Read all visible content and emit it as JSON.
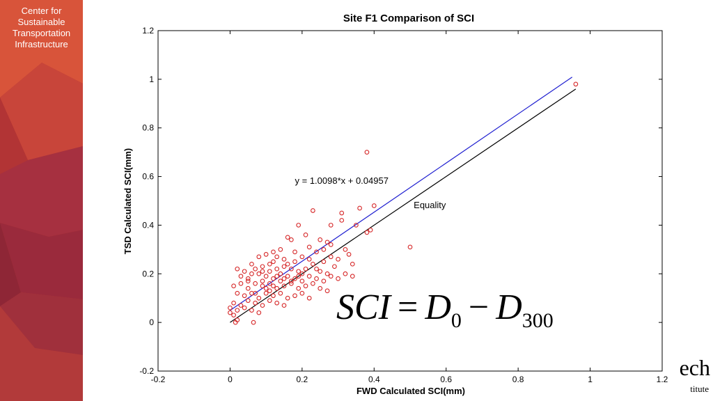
{
  "brand": {
    "lines": [
      "Center for",
      "Sustainable",
      "Transportation",
      "Infrastructure"
    ]
  },
  "logo_fragment": {
    "big": "ech",
    "small": "titute"
  },
  "formula": {
    "lhs": "SCI",
    "eq": "=",
    "d": "D",
    "sub0": "0",
    "minus": "−",
    "sub300": "300"
  },
  "colors": {
    "points": "#d62728",
    "fit_line": "#1f1fd0",
    "equality_line": "#000000",
    "sidebar_base": "#b73a2e"
  },
  "chart_data": {
    "type": "scatter",
    "title": "Site F1 Comparison of SCI",
    "xlabel": "FWD Calculated SCI(mm)",
    "ylabel": "TSD Calculated SCI(mm)",
    "xlim": [
      -0.2,
      1.2
    ],
    "ylim": [
      -0.2,
      1.2
    ],
    "xticks": [
      -0.2,
      0,
      0.2,
      0.4,
      0.6,
      0.8,
      1,
      1.2
    ],
    "yticks": [
      -0.2,
      0,
      0.2,
      0.4,
      0.6,
      0.8,
      1,
      1.2
    ],
    "grid": false,
    "annotations": [
      {
        "text": "y = 1.0098*x + 0.04957",
        "x": 0.18,
        "y": 0.57
      },
      {
        "text": "Equality",
        "x": 0.51,
        "y": 0.47
      }
    ],
    "lines": [
      {
        "label": "y = 1.0098*x + 0.04957",
        "slope": 1.0098,
        "intercept": 0.04957,
        "x": [
          0,
          0.95
        ]
      },
      {
        "label": "Equality",
        "slope": 1.0,
        "intercept": 0,
        "x": [
          0,
          0.96
        ]
      }
    ],
    "points": [
      [
        0.96,
        0.98
      ],
      [
        0.38,
        0.7
      ],
      [
        0.5,
        0.31
      ],
      [
        0.4,
        0.48
      ],
      [
        0.36,
        0.47
      ],
      [
        0.31,
        0.45
      ],
      [
        0.31,
        0.42
      ],
      [
        0.23,
        0.46
      ],
      [
        0.28,
        0.4
      ],
      [
        0.35,
        0.4
      ],
      [
        0.19,
        0.4
      ],
      [
        0.38,
        0.37
      ],
      [
        0.39,
        0.38
      ],
      [
        0.21,
        0.36
      ],
      [
        0.16,
        0.35
      ],
      [
        0.17,
        0.34
      ],
      [
        0.25,
        0.34
      ],
      [
        0.28,
        0.32
      ],
      [
        0.22,
        0.31
      ],
      [
        0.26,
        0.3
      ],
      [
        0.24,
        0.29
      ],
      [
        0.33,
        0.28
      ],
      [
        0.32,
        0.3
      ],
      [
        0.27,
        0.33
      ],
      [
        0.14,
        0.3
      ],
      [
        0.12,
        0.29
      ],
      [
        0.1,
        0.28
      ],
      [
        0.08,
        0.27
      ],
      [
        0.13,
        0.27
      ],
      [
        0.15,
        0.26
      ],
      [
        0.2,
        0.27
      ],
      [
        0.18,
        0.25
      ],
      [
        0.22,
        0.26
      ],
      [
        0.26,
        0.25
      ],
      [
        0.3,
        0.26
      ],
      [
        0.29,
        0.23
      ],
      [
        0.34,
        0.24
      ],
      [
        0.02,
        0.22
      ],
      [
        0.04,
        0.21
      ],
      [
        0.06,
        0.24
      ],
      [
        0.07,
        0.22
      ],
      [
        0.09,
        0.23
      ],
      [
        0.11,
        0.24
      ],
      [
        0.13,
        0.22
      ],
      [
        0.15,
        0.23
      ],
      [
        0.17,
        0.22
      ],
      [
        0.19,
        0.21
      ],
      [
        0.21,
        0.22
      ],
      [
        0.23,
        0.24
      ],
      [
        0.25,
        0.21
      ],
      [
        0.27,
        0.2
      ],
      [
        0.03,
        0.19
      ],
      [
        0.05,
        0.18
      ],
      [
        0.08,
        0.2
      ],
      [
        0.1,
        0.19
      ],
      [
        0.12,
        0.18
      ],
      [
        0.14,
        0.2
      ],
      [
        0.16,
        0.19
      ],
      [
        0.18,
        0.18
      ],
      [
        0.2,
        0.2
      ],
      [
        0.22,
        0.19
      ],
      [
        0.24,
        0.18
      ],
      [
        0.26,
        0.17
      ],
      [
        0.28,
        0.19
      ],
      [
        0.3,
        0.18
      ],
      [
        0.32,
        0.2
      ],
      [
        0.34,
        0.19
      ],
      [
        0.01,
        0.15
      ],
      [
        0.03,
        0.16
      ],
      [
        0.05,
        0.14
      ],
      [
        0.07,
        0.16
      ],
      [
        0.09,
        0.15
      ],
      [
        0.11,
        0.16
      ],
      [
        0.13,
        0.14
      ],
      [
        0.15,
        0.15
      ],
      [
        0.17,
        0.16
      ],
      [
        0.19,
        0.14
      ],
      [
        0.21,
        0.15
      ],
      [
        0.23,
        0.16
      ],
      [
        0.25,
        0.14
      ],
      [
        0.27,
        0.13
      ],
      [
        0.02,
        0.12
      ],
      [
        0.04,
        0.11
      ],
      [
        0.06,
        0.12
      ],
      [
        0.08,
        0.1
      ],
      [
        0.1,
        0.12
      ],
      [
        0.12,
        0.11
      ],
      [
        0.14,
        0.12
      ],
      [
        0.16,
        0.1
      ],
      [
        0.18,
        0.11
      ],
      [
        0.2,
        0.12
      ],
      [
        0.22,
        0.1
      ],
      [
        0.01,
        0.08
      ],
      [
        0.03,
        0.07
      ],
      [
        0.05,
        0.09
      ],
      [
        0.07,
        0.08
      ],
      [
        0.09,
        0.07
      ],
      [
        0.11,
        0.09
      ],
      [
        0.13,
        0.08
      ],
      [
        0.15,
        0.07
      ],
      [
        0.0,
        0.06
      ],
      [
        0.02,
        0.05
      ],
      [
        0.04,
        0.06
      ],
      [
        0.06,
        0.05
      ],
      [
        0.08,
        0.04
      ],
      [
        0.01,
        0.03
      ],
      [
        0.02,
        0.01
      ],
      [
        0.015,
        0.0
      ],
      [
        0.065,
        0.0
      ],
      [
        0.0,
        0.04
      ],
      [
        0.05,
        0.17
      ],
      [
        0.06,
        0.2
      ],
      [
        0.09,
        0.17
      ],
      [
        0.11,
        0.21
      ],
      [
        0.12,
        0.25
      ],
      [
        0.16,
        0.24
      ],
      [
        0.18,
        0.29
      ],
      [
        0.14,
        0.17
      ],
      [
        0.1,
        0.14
      ],
      [
        0.07,
        0.12
      ],
      [
        0.12,
        0.15
      ],
      [
        0.2,
        0.17
      ],
      [
        0.15,
        0.18
      ],
      [
        0.19,
        0.19
      ],
      [
        0.17,
        0.17
      ],
      [
        0.13,
        0.19
      ],
      [
        0.09,
        0.21
      ],
      [
        0.11,
        0.13
      ],
      [
        0.24,
        0.22
      ],
      [
        0.28,
        0.27
      ]
    ]
  }
}
